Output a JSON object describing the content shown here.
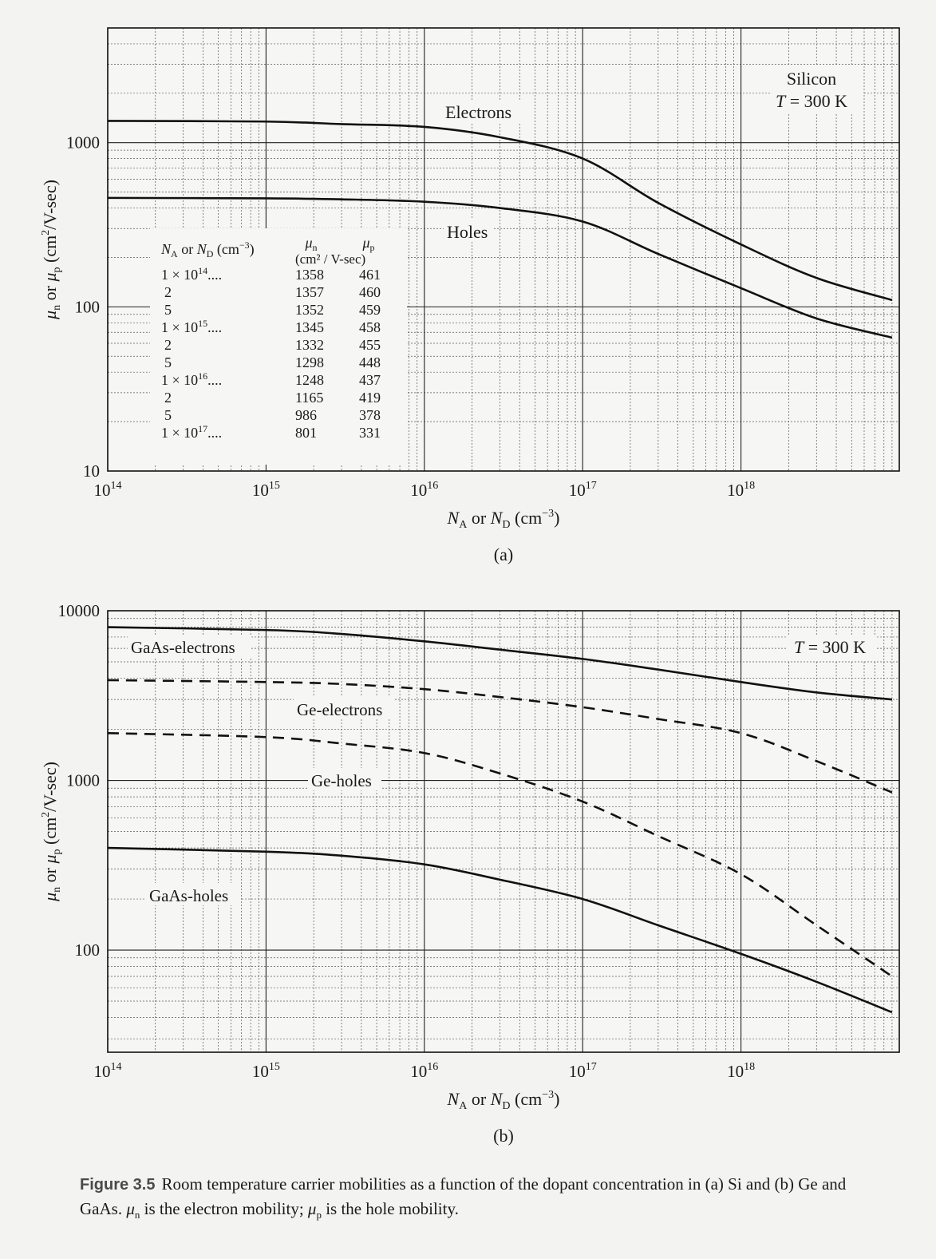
{
  "chart_data": [
    {
      "id": "a",
      "type": "line",
      "panel_label": "(a)",
      "x_scale": "log",
      "y_scale": "log",
      "xlim": [
        100000000000000.0,
        1e+19
      ],
      "ylim": [
        10,
        5000
      ],
      "grid": true,
      "xlabel_main": "N",
      "xlabel_sub_a": "A",
      "xlabel_or": " or ",
      "xlabel_sub_d": "D",
      "xlabel_unit": " (cm",
      "xlabel_unit_exp": "−3",
      "xlabel_unit_end": ")",
      "ylabel": "μn or μp (cm²/V-sec)",
      "x_ticks": [
        "10",
        "10",
        "10",
        "10",
        "10"
      ],
      "x_tick_exps": [
        "14",
        "15",
        "16",
        "17",
        "18"
      ],
      "y_ticks": [
        "1000",
        "100",
        "10"
      ],
      "annotation_material": "Silicon",
      "annotation_T": "T",
      "annotation_T_value": " = 300 K",
      "series": [
        {
          "name": "Electrons",
          "style": "solid",
          "x": [
            100000000000000.0,
            1000000000000000.0,
            3000000000000000.0,
            1e+16,
            3e+16,
            1e+17,
            3e+17,
            1e+18,
            3e+18,
            9e+18
          ],
          "y": [
            1358,
            1345,
            1298,
            1248,
            1080,
            801,
            430,
            240,
            150,
            110
          ]
        },
        {
          "name": "Holes",
          "style": "solid",
          "x": [
            100000000000000.0,
            1000000000000000.0,
            3000000000000000.0,
            1e+16,
            3e+16,
            1e+17,
            3e+17,
            1e+18,
            3e+18,
            9e+18
          ],
          "y": [
            461,
            458,
            452,
            437,
            400,
            331,
            210,
            130,
            85,
            65
          ]
        }
      ],
      "inset_table": {
        "header_na": "N",
        "header_na_sub": "A",
        "header_or": " or ",
        "header_nd": "N",
        "header_nd_sub": "D",
        "header_unit": " (cm",
        "header_unit_exp": "−3",
        "header_unit_end": ")",
        "header_mun": "μ",
        "header_mun_sub": "n",
        "header_mup": "μ",
        "header_mup_sub": "p",
        "header_units": "(cm²  / V-sec)",
        "rows": [
          {
            "conc": "1 × 10",
            "exp": "14",
            "dots": "....",
            "mun": "1358",
            "mup": "461"
          },
          {
            "conc": "2",
            "exp": "",
            "dots": "",
            "mun": "1357",
            "mup": "460"
          },
          {
            "conc": "5",
            "exp": "",
            "dots": "",
            "mun": "1352",
            "mup": "459"
          },
          {
            "conc": "1 × 10",
            "exp": "15",
            "dots": "....",
            "mun": "1345",
            "mup": "458"
          },
          {
            "conc": "2",
            "exp": "",
            "dots": "",
            "mun": "1332",
            "mup": "455"
          },
          {
            "conc": "5",
            "exp": "",
            "dots": "",
            "mun": "1298",
            "mup": "448"
          },
          {
            "conc": "1 × 10",
            "exp": "16",
            "dots": "....",
            "mun": "1248",
            "mup": "437"
          },
          {
            "conc": "2",
            "exp": "",
            "dots": "",
            "mun": "1165",
            "mup": "419"
          },
          {
            "conc": "5",
            "exp": "",
            "dots": "",
            "mun": "986",
            "mup": "378"
          },
          {
            "conc": "1 × 10",
            "exp": "17",
            "dots": "....",
            "mun": "801",
            "mup": "331"
          }
        ]
      }
    },
    {
      "id": "b",
      "type": "line",
      "panel_label": "(b)",
      "x_scale": "log",
      "y_scale": "log",
      "xlim": [
        100000000000000.0,
        1e+19
      ],
      "ylim": [
        25,
        10000
      ],
      "grid": true,
      "xlabel_main": "N",
      "xlabel_sub_a": "A",
      "xlabel_or": " or ",
      "xlabel_sub_d": "D",
      "xlabel_unit": " (cm",
      "xlabel_unit_exp": "−3",
      "xlabel_unit_end": ")",
      "ylabel": "μn or μp (cm²/V-sec)",
      "x_ticks": [
        "10",
        "10",
        "10",
        "10",
        "10"
      ],
      "x_tick_exps": [
        "14",
        "15",
        "16",
        "17",
        "18"
      ],
      "y_ticks": [
        "10000",
        "1000",
        "100"
      ],
      "annotation_T": "T",
      "annotation_T_value": " = 300 K",
      "series": [
        {
          "name": "GaAs-electrons",
          "style": "solid",
          "x": [
            100000000000000.0,
            1000000000000000.0,
            3000000000000000.0,
            1e+16,
            3e+16,
            1e+17,
            3e+17,
            1e+18,
            3e+18,
            9e+18
          ],
          "y": [
            8000,
            7700,
            7300,
            6600,
            5900,
            5200,
            4500,
            3800,
            3300,
            3000
          ]
        },
        {
          "name": "Ge-electrons",
          "style": "dashed",
          "x": [
            100000000000000.0,
            1000000000000000.0,
            3000000000000000.0,
            1e+16,
            3e+16,
            1e+17,
            3e+17,
            1e+18,
            3e+18,
            9e+18
          ],
          "y": [
            3900,
            3800,
            3700,
            3450,
            3100,
            2700,
            2300,
            1900,
            1300,
            850
          ]
        },
        {
          "name": "Ge-holes",
          "style": "dashed",
          "x": [
            100000000000000.0,
            1000000000000000.0,
            3000000000000000.0,
            1e+16,
            3e+16,
            1e+17,
            3e+17,
            1e+18,
            3e+18,
            9e+18
          ],
          "y": [
            1900,
            1800,
            1650,
            1450,
            1100,
            750,
            470,
            280,
            140,
            70
          ]
        },
        {
          "name": "GaAs-holes",
          "style": "solid",
          "x": [
            100000000000000.0,
            1000000000000000.0,
            3000000000000000.0,
            1e+16,
            3e+16,
            1e+17,
            3e+17,
            1e+18,
            3e+18,
            9e+18
          ],
          "y": [
            400,
            380,
            360,
            320,
            260,
            200,
            140,
            95,
            65,
            43
          ]
        }
      ]
    }
  ],
  "caption": {
    "figure_label": "Figure 3.5",
    "text_1": "Room temperature carrier mobilities as a function of the dopant concentration in (a) Si and (b) Ge and GaAs. ",
    "mu_n_symbol": "μ",
    "mu_n_sub": "n",
    "text_2": " is the electron mobility; ",
    "mu_p_symbol": "μ",
    "mu_p_sub": "p",
    "text_3": " is the hole mobility."
  }
}
